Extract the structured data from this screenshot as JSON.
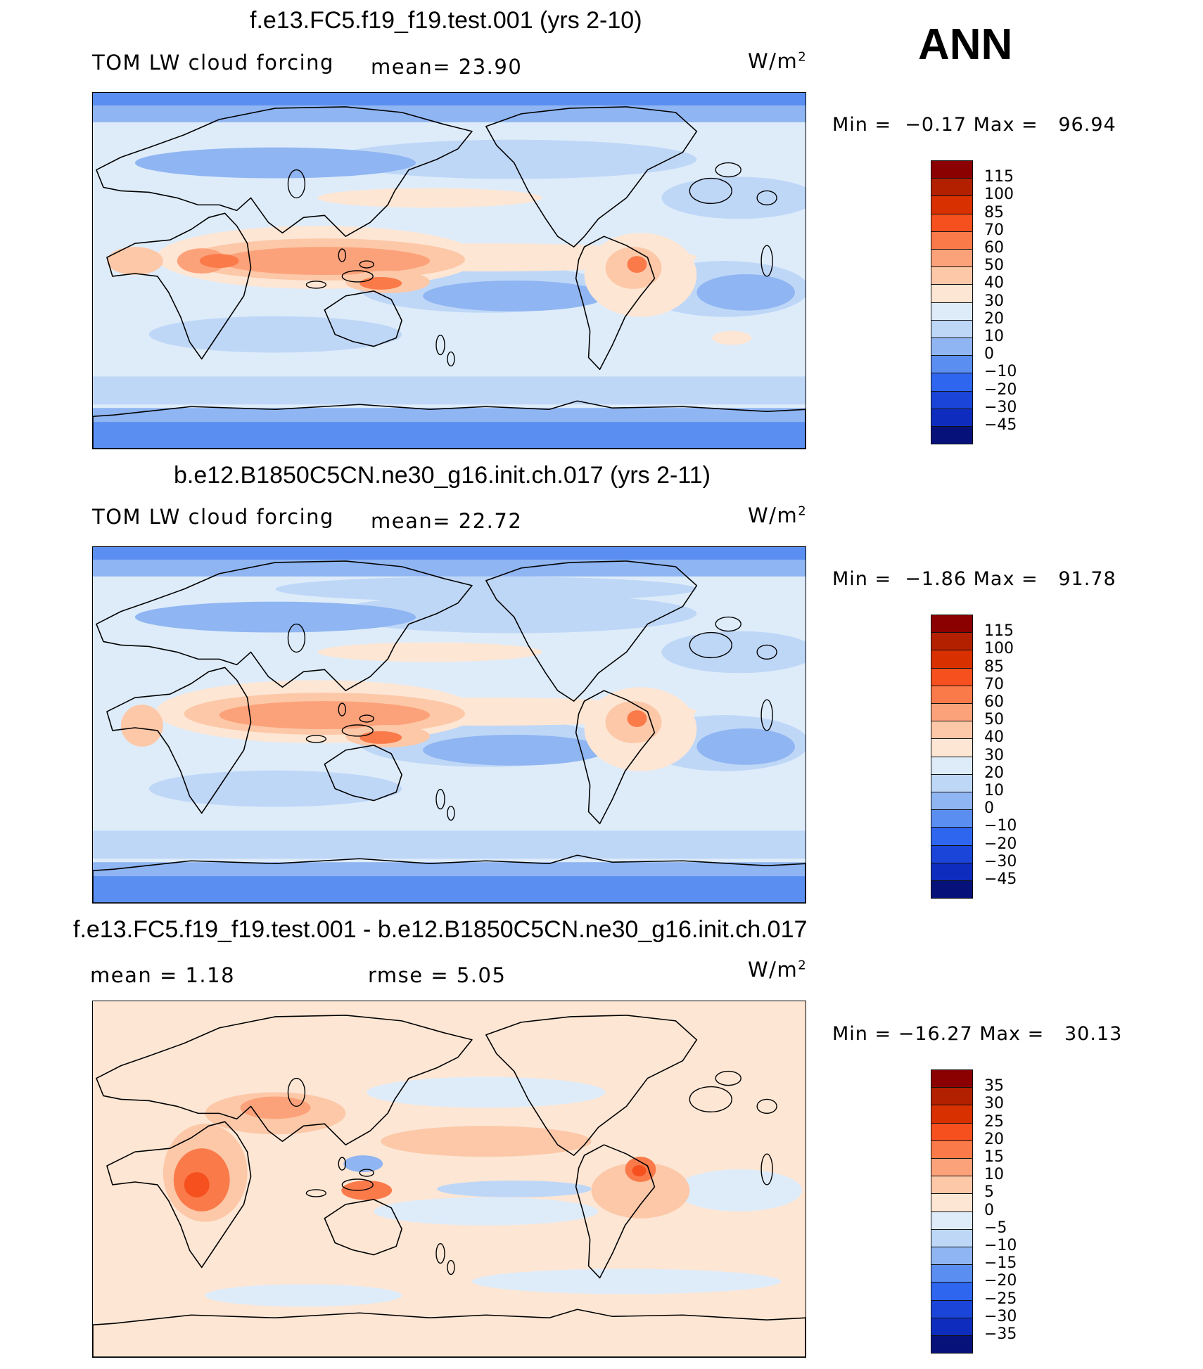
{
  "season": "ANN",
  "field_label": "TOM LW cloud forcing",
  "units": {
    "base": "W/m",
    "sup": "2"
  },
  "panels": [
    {
      "title": "f.e13.FC5.f19_f19.test.001 (yrs 2-10)",
      "left_label": "TOM LW cloud forcing",
      "center_label": "mean=  23.90",
      "minmax": "Min =  −0.17 Max =   96.94",
      "palette": "abs"
    },
    {
      "title": "b.e12.B1850C5CN.ne30_g16.init.ch.017 (yrs 2-11)",
      "left_label": "TOM LW cloud forcing",
      "center_label": "mean=  22.72",
      "minmax": "Min =  −1.86 Max =   91.78",
      "palette": "abs"
    },
    {
      "title": "f.e13.FC5.f19_f19.test.001 - b.e12.B1850C5CN.ne30_g16.init.ch.017",
      "left_label": "mean =    1.18",
      "center_label": "rmse =    5.05",
      "minmax": "Min = −16.27 Max =   30.13",
      "palette": "diff"
    }
  ],
  "colorbars": {
    "abs": {
      "labels": [
        "115",
        "100",
        "85",
        "70",
        "60",
        "50",
        "40",
        "30",
        "20",
        "10",
        "0",
        "−10",
        "−20",
        "−30",
        "−45"
      ],
      "colors": [
        "#8b0000",
        "#b22000",
        "#d93000",
        "#f5501e",
        "#fa7a4a",
        "#fca27a",
        "#fcc8a8",
        "#fde6d4",
        "#deecfa",
        "#bfd7f7",
        "#8fb5f2",
        "#5a8ef0",
        "#2f66f0",
        "#1a45d8",
        "#0e2dbf",
        "#06127a"
      ]
    },
    "diff": {
      "labels": [
        "35",
        "30",
        "25",
        "20",
        "15",
        "10",
        "5",
        "0",
        "−5",
        "−10",
        "−15",
        "−20",
        "−25",
        "−30",
        "−35"
      ],
      "colors": [
        "#8b0000",
        "#b22000",
        "#d93000",
        "#f5501e",
        "#fa7a4a",
        "#fca27a",
        "#fcc8a8",
        "#fde6d4",
        "#deecfa",
        "#bfd7f7",
        "#8fb5f2",
        "#5a8ef0",
        "#2f66f0",
        "#1a45d8",
        "#0e2dbf",
        "#06127a"
      ]
    }
  },
  "chart_data": {
    "type": "heatmap",
    "title": "ANN",
    "variable": "TOM LW cloud forcing",
    "units": "W/m2",
    "maps": [
      {
        "case": "f.e13.FC5.f19_f19.test.001 (yrs 2-10)",
        "mean": 23.9,
        "min": -0.17,
        "max": 96.94,
        "contour_levels": [
          -45,
          -30,
          -20,
          -10,
          0,
          10,
          20,
          30,
          40,
          50,
          60,
          70,
          85,
          100,
          115
        ]
      },
      {
        "case": "b.e12.B1850C5CN.ne30_g16.init.ch.017 (yrs 2-11)",
        "mean": 22.72,
        "min": -1.86,
        "max": 91.78,
        "contour_levels": [
          -45,
          -30,
          -20,
          -10,
          0,
          10,
          20,
          30,
          40,
          50,
          60,
          70,
          85,
          100,
          115
        ]
      },
      {
        "case": "f.e13.FC5.f19_f19.test.001 - b.e12.B1850C5CN.ne30_g16.init.ch.017",
        "mean": 1.18,
        "rmse": 5.05,
        "min": -16.27,
        "max": 30.13,
        "contour_levels": [
          -35,
          -30,
          -25,
          -20,
          -15,
          -10,
          -5,
          0,
          5,
          10,
          15,
          20,
          25,
          30,
          35
        ]
      }
    ]
  }
}
